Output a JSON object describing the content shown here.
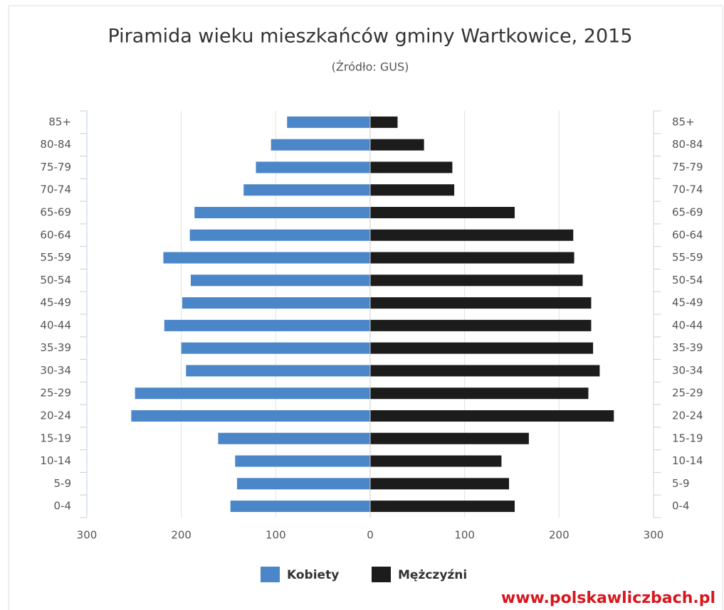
{
  "chart_data": {
    "type": "pyramid",
    "title": "Piramida wieku mieszkańców gminy Wartkowice, 2015",
    "subtitle": "(Źródło: GUS)",
    "watermark": "www.polskawliczbach.pl",
    "categories": [
      "0-4",
      "5-9",
      "10-14",
      "15-19",
      "20-24",
      "25-29",
      "30-34",
      "35-39",
      "40-44",
      "45-49",
      "50-54",
      "55-59",
      "60-64",
      "65-69",
      "70-74",
      "75-79",
      "80-84",
      "85+"
    ],
    "series": [
      {
        "name": "Kobiety",
        "color": "#4a86c8",
        "values": [
          148,
          141,
          143,
          161,
          253,
          249,
          195,
          200,
          218,
          199,
          190,
          219,
          191,
          186,
          134,
          121,
          105,
          88
        ]
      },
      {
        "name": "Mężczyźni",
        "color": "#1c1c1c",
        "values": [
          153,
          147,
          139,
          168,
          258,
          231,
          243,
          236,
          234,
          234,
          225,
          216,
          215,
          153,
          89,
          87,
          57,
          29
        ]
      }
    ],
    "xlim": [
      -300,
      300
    ],
    "xticks": [
      {
        "value": -300,
        "label": "300"
      },
      {
        "value": -200,
        "label": "200"
      },
      {
        "value": -100,
        "label": "100"
      },
      0,
      100,
      200,
      300
    ],
    "grid": true
  }
}
